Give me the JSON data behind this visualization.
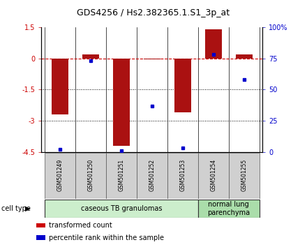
{
  "title": "GDS4256 / Hs2.382365.1.S1_3p_at",
  "samples": [
    "GSM501249",
    "GSM501250",
    "GSM501251",
    "GSM501252",
    "GSM501253",
    "GSM501254",
    "GSM501255"
  ],
  "transformed_counts": [
    -2.7,
    0.2,
    -4.2,
    -0.05,
    -2.6,
    1.4,
    0.2
  ],
  "percentile_ranks": [
    2,
    73,
    1,
    37,
    3,
    78,
    58
  ],
  "ylim_left": [
    -4.5,
    1.5
  ],
  "ylim_right": [
    0,
    100
  ],
  "yticks_left": [
    1.5,
    0,
    -1.5,
    -3,
    -4.5
  ],
  "yticks_right": [
    0,
    25,
    50,
    75,
    100
  ],
  "ytick_labels_left": [
    "1.5",
    "0",
    "-1.5",
    "-3",
    "-4.5"
  ],
  "ytick_labels_right": [
    "0",
    "25",
    "50",
    "75",
    "100%"
  ],
  "hline_y": 0,
  "dotted_lines": [
    -1.5,
    -3
  ],
  "bar_color": "#aa1111",
  "dot_color": "#0000cc",
  "groups": [
    {
      "label": "caseous TB granulomas",
      "samples": [
        0,
        1,
        2,
        3,
        4
      ],
      "color": "#cceecc"
    },
    {
      "label": "normal lung\nparenchyma",
      "samples": [
        5,
        6
      ],
      "color": "#aaddaa"
    }
  ],
  "cell_type_label": "cell type",
  "legend_items": [
    {
      "color": "#cc0000",
      "label": "transformed count"
    },
    {
      "color": "#0000cc",
      "label": "percentile rank within the sample"
    }
  ],
  "bar_width": 0.55,
  "background_color": "#ffffff",
  "title_fontsize": 9,
  "axis_fontsize": 7,
  "sample_fontsize": 5.5,
  "legend_fontsize": 7,
  "group_fontsize": 7
}
